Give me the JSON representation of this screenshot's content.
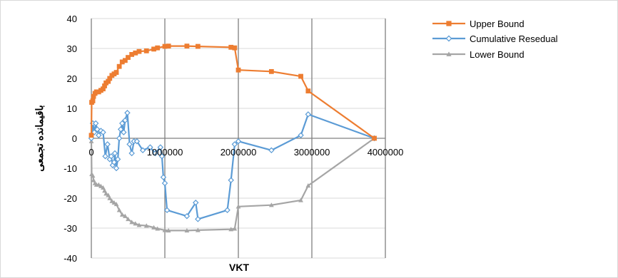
{
  "chart_data": {
    "type": "line",
    "xlabel": "VKT",
    "ylabel": "باقیمانده تجمعی",
    "xlim": [
      0,
      4000000
    ],
    "ylim": [
      -40,
      40
    ],
    "x_ticks": [
      "0",
      "1000000",
      "2000000",
      "3000000",
      "4000000"
    ],
    "y_ticks": [
      "40",
      "30",
      "20",
      "10",
      "0",
      "-10",
      "-20",
      "-30",
      "-40"
    ],
    "grid": "vertical",
    "legend_position": "right",
    "series": [
      {
        "name": "Upper Bound",
        "color": "#ED7D31",
        "marker": "square",
        "points": [
          [
            0,
            1
          ],
          [
            5000,
            12
          ],
          [
            20000,
            12.5
          ],
          [
            30000,
            14
          ],
          [
            50000,
            15
          ],
          [
            70000,
            15.5
          ],
          [
            100000,
            15.5
          ],
          [
            130000,
            16
          ],
          [
            160000,
            16.5
          ],
          [
            180000,
            17.5
          ],
          [
            200000,
            18.5
          ],
          [
            230000,
            19
          ],
          [
            250000,
            20
          ],
          [
            280000,
            21
          ],
          [
            310000,
            21.5
          ],
          [
            340000,
            22
          ],
          [
            380000,
            24
          ],
          [
            420000,
            25.5
          ],
          [
            460000,
            26
          ],
          [
            500000,
            27
          ],
          [
            550000,
            28
          ],
          [
            600000,
            28.5
          ],
          [
            650000,
            29
          ],
          [
            750000,
            29.2
          ],
          [
            850000,
            29.8
          ],
          [
            900000,
            30.2
          ],
          [
            1000000,
            30.7
          ],
          [
            1050000,
            30.8
          ],
          [
            1300000,
            30.8
          ],
          [
            1450000,
            30.7
          ],
          [
            1900000,
            30.4
          ],
          [
            1950000,
            30.2
          ],
          [
            2000000,
            22.8
          ],
          [
            2450000,
            22.3
          ],
          [
            2850000,
            20.7
          ],
          [
            2950000,
            15.8
          ],
          [
            3850000,
            0
          ]
        ]
      },
      {
        "name": "Cumulative Resedual",
        "color": "#5B9BD5",
        "marker": "diamond",
        "points": [
          [
            0,
            0
          ],
          [
            20000,
            5
          ],
          [
            40000,
            2
          ],
          [
            60000,
            5
          ],
          [
            80000,
            3
          ],
          [
            100000,
            1
          ],
          [
            130000,
            2.5
          ],
          [
            160000,
            2
          ],
          [
            190000,
            -6
          ],
          [
            220000,
            -2
          ],
          [
            250000,
            -7
          ],
          [
            270000,
            -6
          ],
          [
            290000,
            -9
          ],
          [
            310000,
            -8
          ],
          [
            320000,
            -5
          ],
          [
            340000,
            -10
          ],
          [
            360000,
            -7
          ],
          [
            380000,
            0
          ],
          [
            400000,
            3
          ],
          [
            420000,
            5
          ],
          [
            440000,
            2
          ],
          [
            460000,
            6
          ],
          [
            490000,
            8.5
          ],
          [
            520000,
            -2
          ],
          [
            550000,
            -5
          ],
          [
            580000,
            -1
          ],
          [
            620000,
            -1
          ],
          [
            700000,
            -4
          ],
          [
            800000,
            -3
          ],
          [
            870000,
            -5
          ],
          [
            940000,
            -3
          ],
          [
            960000,
            -6
          ],
          [
            980000,
            -13
          ],
          [
            1000000,
            -15
          ],
          [
            1030000,
            -24
          ],
          [
            1300000,
            -26
          ],
          [
            1420000,
            -21.5
          ],
          [
            1450000,
            -27
          ],
          [
            1850000,
            -24
          ],
          [
            1900000,
            -14
          ],
          [
            1950000,
            -2
          ],
          [
            2000000,
            -1
          ],
          [
            2450000,
            -4
          ],
          [
            2850000,
            1
          ],
          [
            2950000,
            8
          ],
          [
            3850000,
            0
          ]
        ]
      },
      {
        "name": "Lower Bound",
        "color": "#A5A5A5",
        "marker": "triangle",
        "points": [
          [
            0,
            -1
          ],
          [
            5000,
            -12
          ],
          [
            20000,
            -12.5
          ],
          [
            30000,
            -14
          ],
          [
            50000,
            -15
          ],
          [
            70000,
            -15.5
          ],
          [
            100000,
            -15.5
          ],
          [
            130000,
            -16
          ],
          [
            160000,
            -16.5
          ],
          [
            180000,
            -17.5
          ],
          [
            200000,
            -18.5
          ],
          [
            230000,
            -19
          ],
          [
            250000,
            -20
          ],
          [
            280000,
            -21
          ],
          [
            310000,
            -21.5
          ],
          [
            340000,
            -22
          ],
          [
            380000,
            -24
          ],
          [
            420000,
            -25.5
          ],
          [
            460000,
            -26
          ],
          [
            500000,
            -27
          ],
          [
            550000,
            -28
          ],
          [
            600000,
            -28.5
          ],
          [
            650000,
            -29
          ],
          [
            750000,
            -29.2
          ],
          [
            850000,
            -29.8
          ],
          [
            900000,
            -30.2
          ],
          [
            1000000,
            -30.7
          ],
          [
            1050000,
            -30.8
          ],
          [
            1300000,
            -30.8
          ],
          [
            1450000,
            -30.7
          ],
          [
            1900000,
            -30.4
          ],
          [
            1950000,
            -30.2
          ],
          [
            2000000,
            -22.8
          ],
          [
            2450000,
            -22.3
          ],
          [
            2850000,
            -20.7
          ],
          [
            2950000,
            -15.8
          ],
          [
            3850000,
            0
          ]
        ]
      }
    ]
  }
}
